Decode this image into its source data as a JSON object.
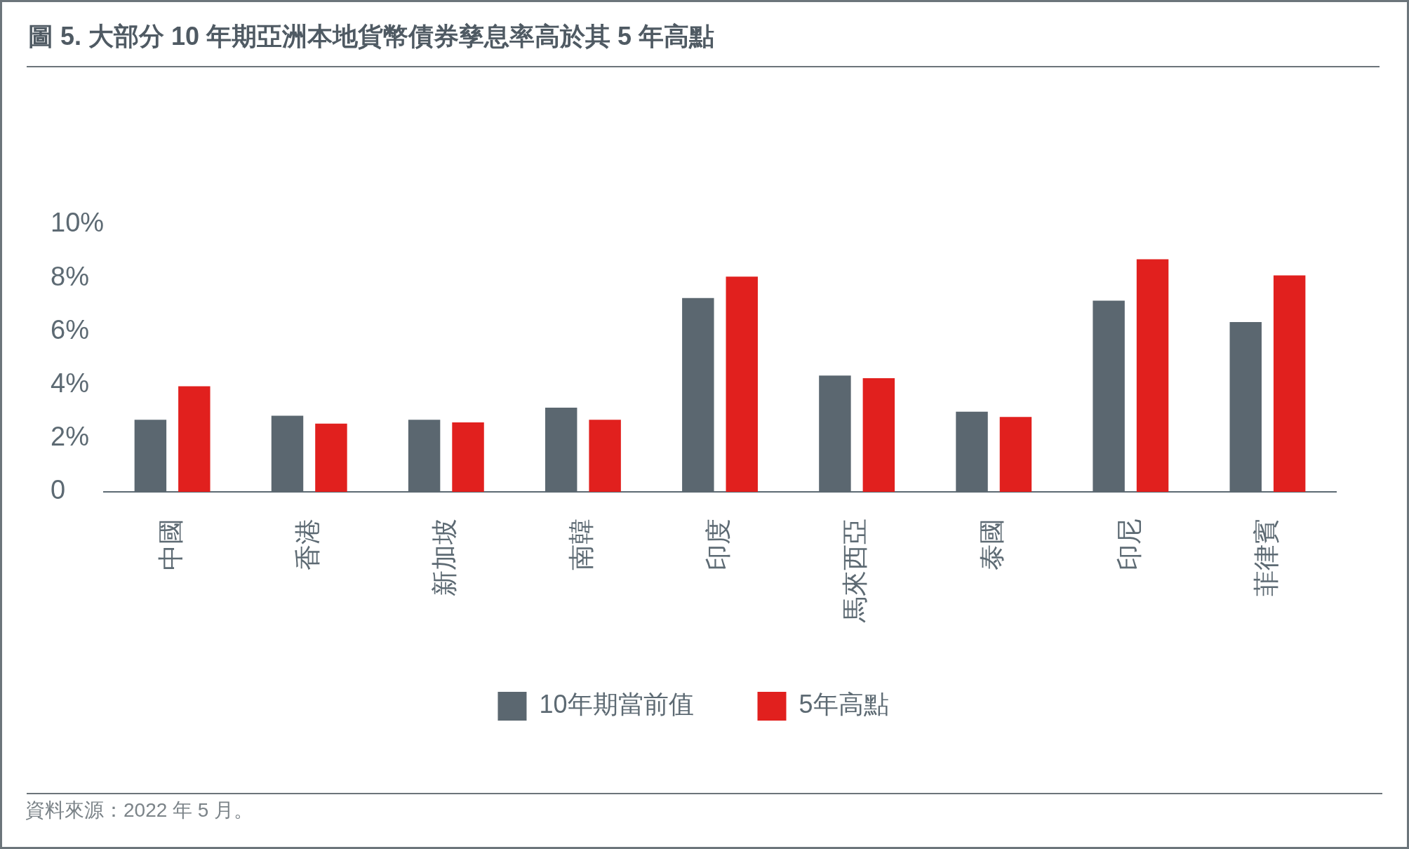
{
  "chart_data": {
    "type": "bar",
    "title": "圖 5. 大部分 10 年期亞洲本地貨幣債券孳息率高於其 5 年高點",
    "categories": [
      "中國",
      "香港",
      "新加坡",
      "南韓",
      "印度",
      "馬來西亞",
      "泰國",
      "印尼",
      "菲律賓"
    ],
    "series": [
      {
        "name": "10年期當前值",
        "color": "#5b6770",
        "values": [
          2.7,
          2.85,
          2.7,
          3.15,
          7.25,
          4.35,
          3.0,
          7.15,
          6.35
        ]
      },
      {
        "name": "5年高點",
        "color": "#e1201e",
        "values": [
          3.95,
          2.55,
          2.6,
          2.7,
          8.05,
          4.25,
          2.8,
          8.7,
          8.1
        ]
      }
    ],
    "ylim": [
      0,
      10
    ],
    "yticks": [
      0,
      {
        "value": 2,
        "label": "2%"
      },
      {
        "value": 4,
        "label": "4%"
      },
      {
        "value": 6,
        "label": "6%"
      },
      {
        "value": 8,
        "label": "8%"
      },
      {
        "value": 10,
        "label": "10%"
      }
    ],
    "grid": false,
    "legend": "bottom",
    "annotations": [
      "資料來源：2022 年 5 月。"
    ]
  }
}
